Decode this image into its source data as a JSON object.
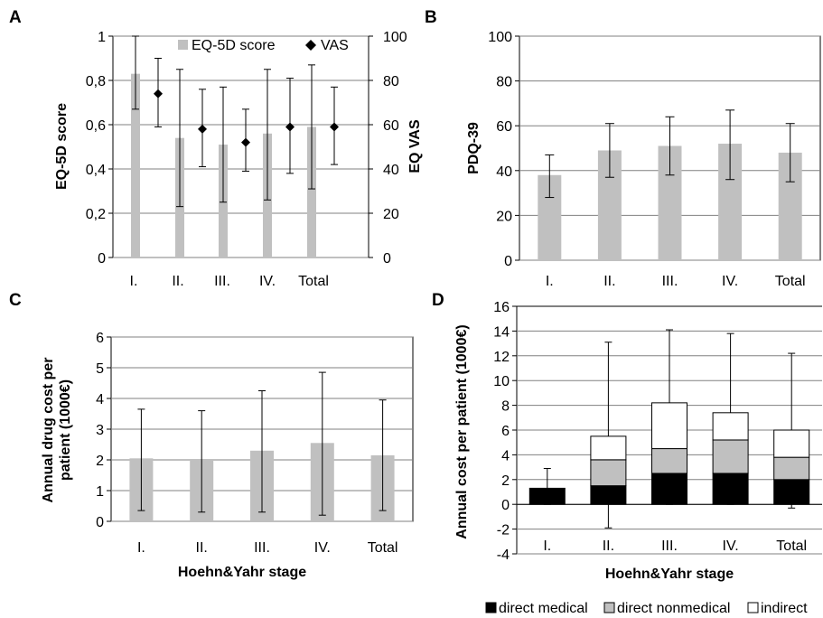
{
  "chart_data": [
    {
      "panel": "A",
      "type": "bar",
      "categories": [
        "I.",
        "II.",
        "III.",
        "IV.",
        "Total"
      ],
      "ylabel": "EQ-5D score",
      "y2label": "EQ VAS",
      "ylim": [
        0,
        1
      ],
      "y2lim": [
        0,
        100
      ],
      "yticks": [
        "0",
        "0,2",
        "0,4",
        "0,6",
        "0,8",
        "1"
      ],
      "y2ticks": [
        "0",
        "20",
        "40",
        "60",
        "80",
        "100"
      ],
      "grid": true,
      "legend": "top",
      "series": [
        {
          "name": "EQ-5D score",
          "kind": "bar",
          "axis": "left",
          "color": "#c0c0c0",
          "values": [
            0.83,
            0.54,
            0.51,
            0.56,
            0.59
          ],
          "err_low": [
            0.67,
            0.23,
            0.25,
            0.26,
            0.31
          ],
          "err_high": [
            1.0,
            0.85,
            0.77,
            0.85,
            0.87
          ]
        },
        {
          "name": "VAS",
          "kind": "marker",
          "axis": "right",
          "color": "#000000",
          "values": [
            74,
            58,
            52,
            59,
            59
          ],
          "err_low": [
            59,
            41,
            39,
            38,
            42
          ],
          "err_high": [
            90,
            76,
            67,
            81,
            77
          ]
        }
      ]
    },
    {
      "panel": "B",
      "type": "bar",
      "categories": [
        "I.",
        "II.",
        "III.",
        "IV.",
        "Total"
      ],
      "ylabel": "PDQ-39",
      "ylim": [
        0,
        100
      ],
      "yticks": [
        "0",
        "20",
        "40",
        "60",
        "80",
        "100"
      ],
      "grid": true,
      "series": [
        {
          "name": "",
          "color": "#c0c0c0",
          "values": [
            38,
            49,
            51,
            52,
            48
          ],
          "err_low": [
            28,
            37,
            38,
            36,
            35
          ],
          "err_high": [
            47,
            61,
            64,
            67,
            61
          ]
        }
      ]
    },
    {
      "panel": "C",
      "type": "bar",
      "categories": [
        "I.",
        "II.",
        "III.",
        "IV.",
        "Total"
      ],
      "xlabel": "Hoehn&Yahr stage",
      "ylabel": "Annual drug cost per patient (1000€)",
      "ylabel_lines": [
        "Annual drug cost per",
        "patient (1000€)"
      ],
      "ylim": [
        0,
        6
      ],
      "yticks": [
        "0",
        "1",
        "2",
        "3",
        "4",
        "5",
        "6"
      ],
      "grid": true,
      "series": [
        {
          "name": "",
          "color": "#c0c0c0",
          "values": [
            2.05,
            2.0,
            2.3,
            2.55,
            2.15
          ],
          "err_low": [
            0.35,
            0.3,
            0.3,
            0.2,
            0.35
          ],
          "err_high": [
            3.65,
            3.6,
            4.25,
            4.85,
            3.95
          ]
        }
      ]
    },
    {
      "panel": "D",
      "type": "bar",
      "stacked": true,
      "categories": [
        "I.",
        "II.",
        "III.",
        "IV.",
        "Total"
      ],
      "xlabel": "Hoehn&Yahr stage",
      "ylabel": "Annual cost per patient (1000€)",
      "ylim": [
        -4,
        16
      ],
      "yticks": [
        "-4",
        "-2",
        "0",
        "2",
        "4",
        "6",
        "8",
        "10",
        "12",
        "14",
        "16"
      ],
      "grid": true,
      "legend": "bottom",
      "series": [
        {
          "name": "direct medical",
          "color": "#000000",
          "values": [
            1.3,
            1.5,
            2.5,
            2.5,
            2.0
          ]
        },
        {
          "name": "direct nonmedical",
          "color": "#c0c0c0",
          "values": [
            0.0,
            2.1,
            2.0,
            2.7,
            1.8
          ]
        },
        {
          "name": "indirect",
          "color": "#ffffff",
          "values": [
            0.0,
            1.9,
            3.7,
            2.2,
            2.2
          ]
        }
      ],
      "total_err_low": [
        0.0,
        -1.9,
        0.0,
        0.0,
        -0.3
      ],
      "total_err_high": [
        2.9,
        13.1,
        14.1,
        13.8,
        12.2
      ]
    }
  ],
  "panel_labels": {
    "a": "A",
    "b": "B",
    "c": "C",
    "d": "D"
  },
  "legend_a": {
    "bar": "EQ-5D score",
    "marker": "VAS"
  },
  "legend_d": {
    "item1": "direct medical",
    "item2": "direct nonmedical",
    "item3": "indirect"
  }
}
